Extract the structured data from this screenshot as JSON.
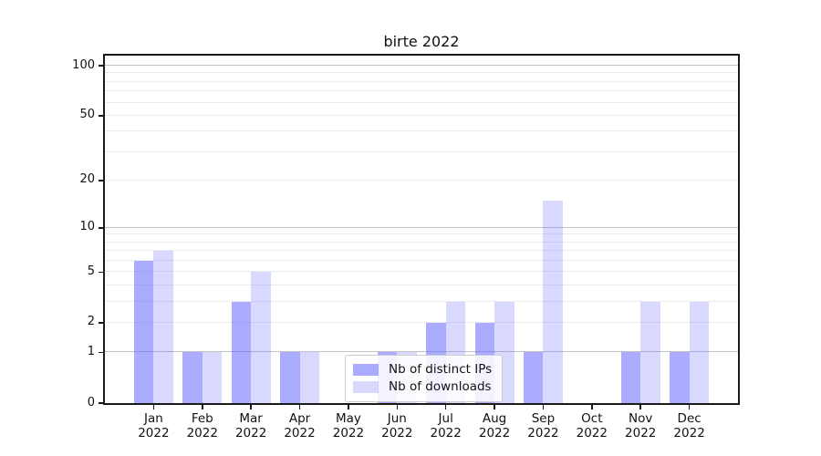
{
  "chart_data": {
    "type": "bar",
    "title": "birte 2022",
    "categories": [
      {
        "month": "Jan",
        "year": "2022"
      },
      {
        "month": "Feb",
        "year": "2022"
      },
      {
        "month": "Mar",
        "year": "2022"
      },
      {
        "month": "Apr",
        "year": "2022"
      },
      {
        "month": "May",
        "year": "2022"
      },
      {
        "month": "Jun",
        "year": "2022"
      },
      {
        "month": "Jul",
        "year": "2022"
      },
      {
        "month": "Aug",
        "year": "2022"
      },
      {
        "month": "Sep",
        "year": "2022"
      },
      {
        "month": "Oct",
        "year": "2022"
      },
      {
        "month": "Nov",
        "year": "2022"
      },
      {
        "month": "Dec",
        "year": "2022"
      }
    ],
    "series": [
      {
        "name": "Nb of distinct IPs",
        "values": [
          6,
          1,
          3,
          1,
          0,
          1,
          2,
          2,
          1,
          0,
          1,
          1
        ],
        "color": "rgba(102,102,255,0.55)",
        "color_hex_on_white": "#ababff"
      },
      {
        "name": "Nb of downloads",
        "values": [
          7,
          1,
          5,
          1,
          0,
          1,
          3,
          3,
          15,
          0,
          3,
          3
        ],
        "color": "rgba(102,102,255,0.25)",
        "color_hex_on_white": "#d9d9ff"
      }
    ],
    "y_axis": {
      "scale": "log10(value+1)",
      "ticks": [
        0,
        1,
        2,
        5,
        10,
        20,
        50,
        100
      ],
      "max": 115,
      "major_gridlines": [
        1,
        10,
        100
      ],
      "minor_gridlines": [
        2,
        3,
        4,
        5,
        6,
        7,
        8,
        9,
        20,
        30,
        40,
        50,
        60,
        70,
        80,
        90
      ]
    },
    "legend_position": "lower center",
    "grid": true
  },
  "colors": {
    "bar_base": "#6666ff",
    "major_grid": "#c2c2c2",
    "minor_grid": "#ebebeb",
    "axis": "#1a1a1a",
    "background": "#ffffff",
    "text": "#111111"
  }
}
